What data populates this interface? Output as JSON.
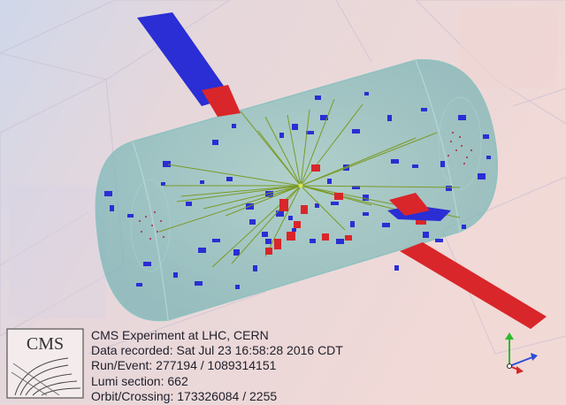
{
  "event_display": {
    "logo_text": "CMS",
    "info_lines": {
      "experiment": "CMS Experiment at LHC, CERN",
      "recorded": "Data recorded: Sat Jul 23 16:58:28 2016 CDT",
      "run_event": "Run/Event: 277194 / 1089314151",
      "lumi": "Lumi section: 662",
      "orbit": "Orbit/Crossing: 173326084 / 2255"
    },
    "colors": {
      "ecal_deposit": "#d9262a",
      "hcal_deposit": "#2a2ed4",
      "tracks": "#7a9a25",
      "muon_chambers": "#1f3fb0",
      "tracker_volume": "#6fb6b4",
      "axis_y": "#2bbb2b",
      "axis_x": "#2a4fd4",
      "axis_z": "#d42a2a"
    }
  }
}
